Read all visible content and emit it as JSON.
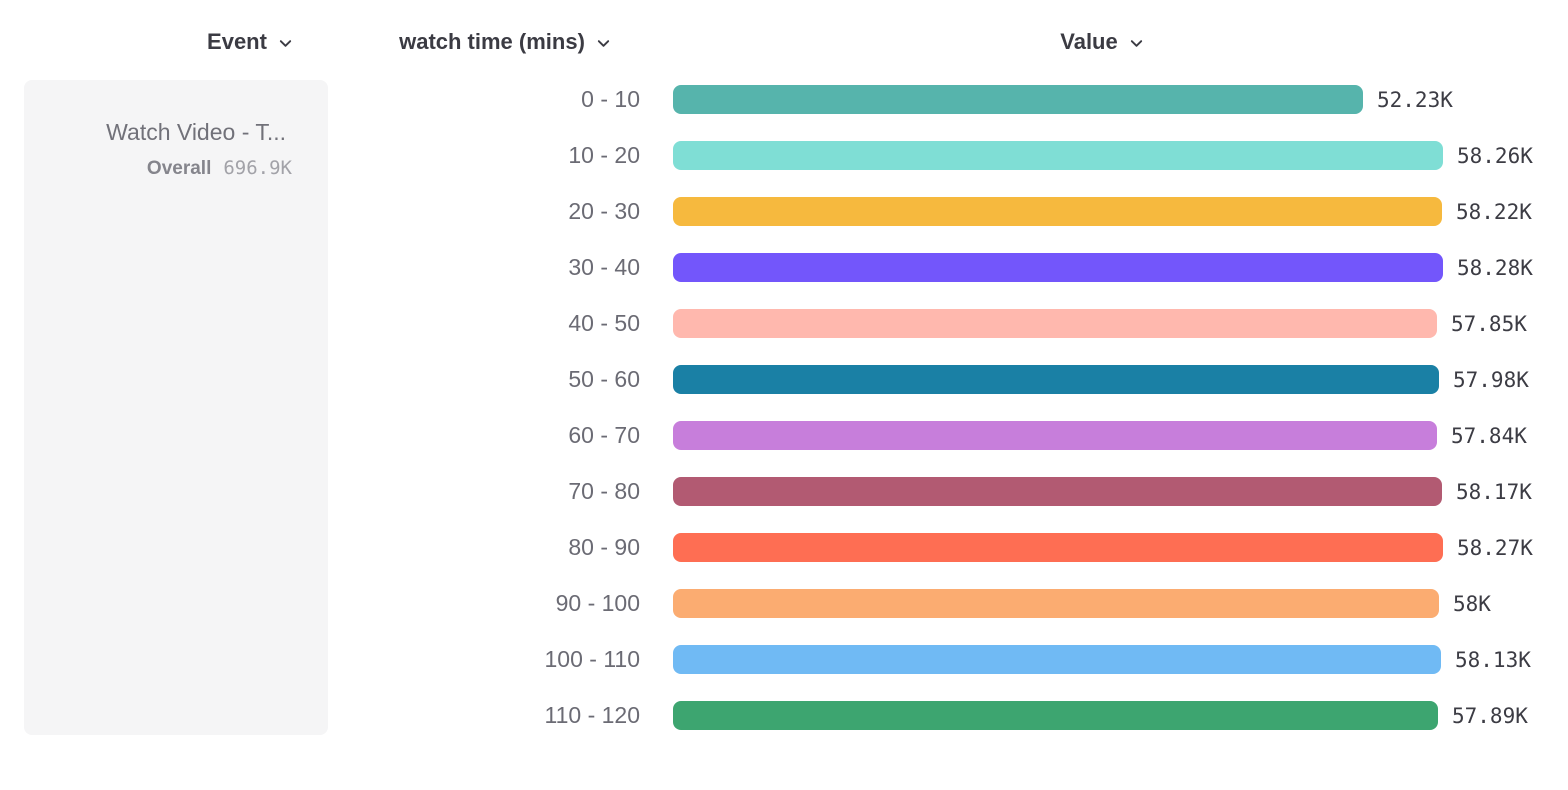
{
  "header": {
    "event_label": "Event",
    "series_label": "watch time (mins)",
    "value_label": "Value"
  },
  "event_card": {
    "event_name": "Watch Video - T...",
    "overall_label": "Overall",
    "overall_value": "696.9K"
  },
  "chart_data": {
    "type": "bar",
    "orientation": "horizontal",
    "xlabel": "Value",
    "ylabel": "watch time (mins)",
    "categories": [
      "0 - 10",
      "10 - 20",
      "20 - 30",
      "30 - 40",
      "40 - 50",
      "50 - 60",
      "60 - 70",
      "70 - 80",
      "80 - 90",
      "90 - 100",
      "100 - 110",
      "110 - 120"
    ],
    "values": [
      52230,
      58260,
      58220,
      58280,
      57850,
      57980,
      57840,
      58170,
      58270,
      58000,
      58130,
      57890
    ],
    "value_labels": [
      "52.23K",
      "58.26K",
      "58.22K",
      "58.28K",
      "57.85K",
      "57.98K",
      "57.84K",
      "58.17K",
      "58.27K",
      "58K",
      "58.13K",
      "57.89K"
    ],
    "bar_colors": [
      "#56b4ac",
      "#7fded5",
      "#f6b93e",
      "#7356fb",
      "#ffb8ae",
      "#1a80a5",
      "#c77edb",
      "#b25a72",
      "#fe6e53",
      "#fbac71",
      "#70baf4",
      "#3da570"
    ],
    "xlim": [
      0,
      58280
    ],
    "grid": false,
    "legend": false
  }
}
